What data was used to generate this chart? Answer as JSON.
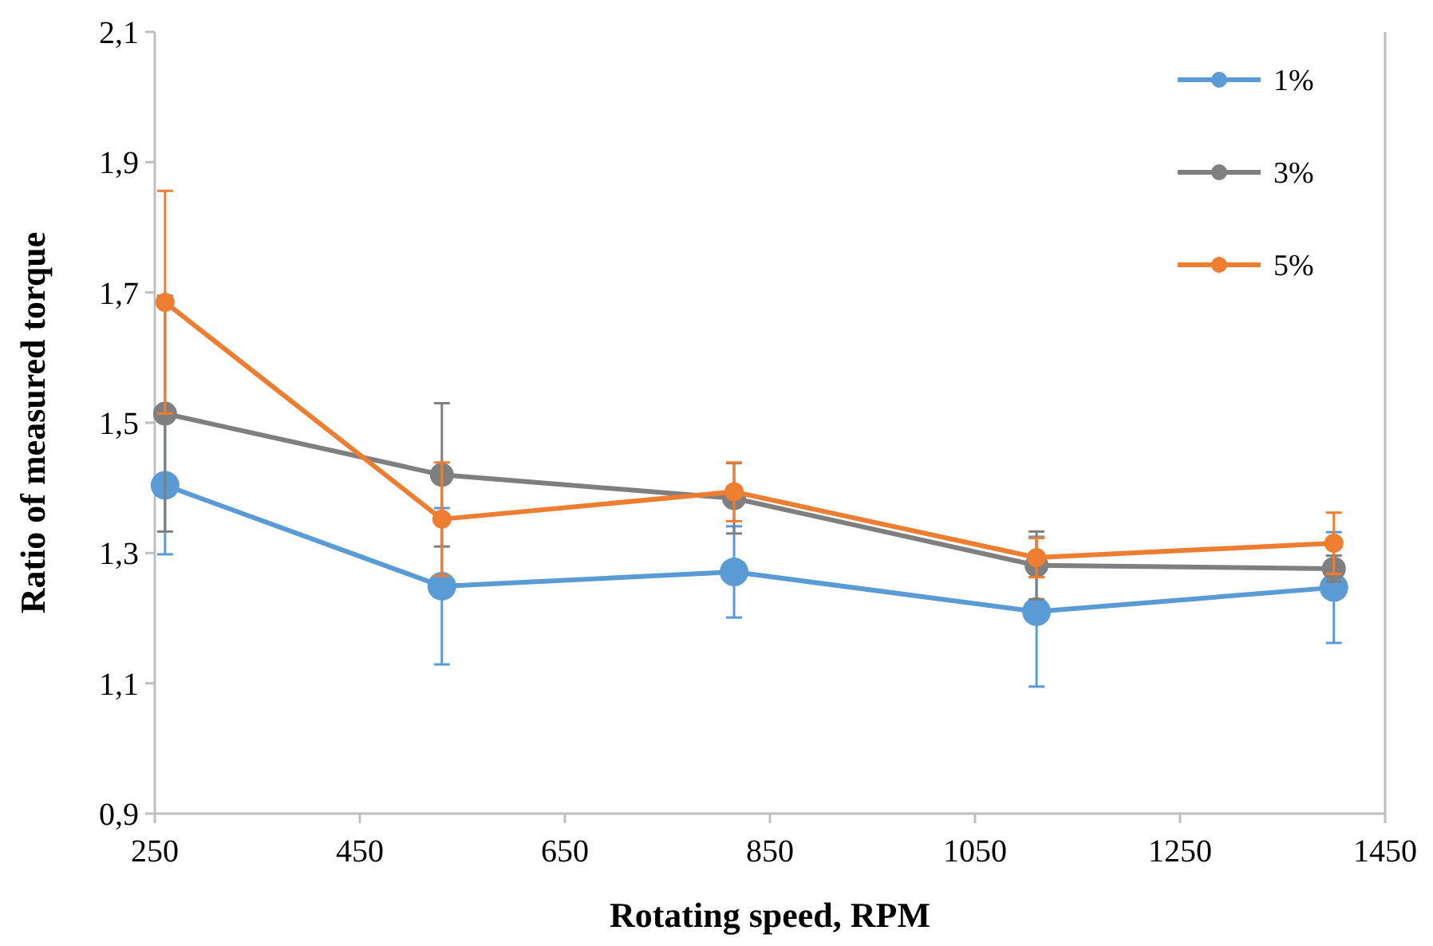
{
  "chart_data": {
    "type": "line",
    "xlabel": "Rotating speed, RPM",
    "ylabel": "Ratio of measured torque",
    "x": [
      260,
      530,
      815,
      1110,
      1400
    ],
    "series": [
      {
        "name": "1%",
        "color": "#5b9bd5",
        "values": [
          1.404,
          1.249,
          1.271,
          1.21,
          1.247
        ],
        "errors": [
          0.106,
          0.12,
          0.07,
          0.115,
          0.085
        ]
      },
      {
        "name": "3%",
        "color": "#7f7f7f",
        "values": [
          1.514,
          1.42,
          1.384,
          1.281,
          1.276
        ],
        "errors": [
          0.181,
          0.11,
          0.054,
          0.052,
          0.02
        ]
      },
      {
        "name": "5%",
        "color": "#ed7d31",
        "values": [
          1.685,
          1.352,
          1.394,
          1.293,
          1.315
        ],
        "errors": [
          0.171,
          0.087,
          0.045,
          0.03,
          0.047
        ]
      }
    ],
    "xlim": [
      250,
      1450
    ],
    "xticks": [
      250,
      450,
      650,
      850,
      1050,
      1250,
      1450
    ],
    "ylim": [
      0.9,
      2.1
    ],
    "yticks": [
      {
        "value": 0.9,
        "label": "0,9"
      },
      {
        "value": 1.1,
        "label": "1,1"
      },
      {
        "value": 1.3,
        "label": "1,3"
      },
      {
        "value": 1.5,
        "label": "1,5"
      },
      {
        "value": 1.7,
        "label": "1,7"
      },
      {
        "value": 1.9,
        "label": "1,9"
      },
      {
        "value": 2.1,
        "label": "2,1"
      }
    ],
    "grid": false,
    "legend": "top right",
    "marker": "circle",
    "line_style": "solid"
  }
}
